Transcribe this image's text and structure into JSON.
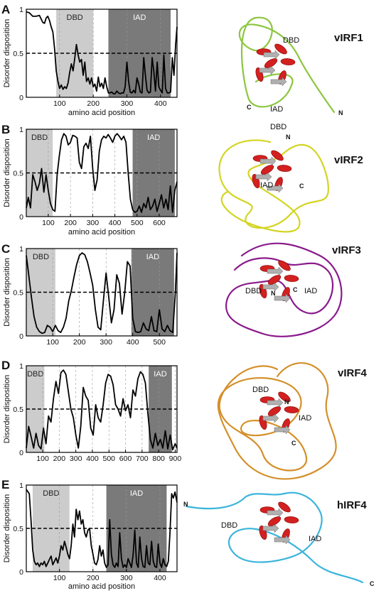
{
  "chart_data": [
    {
      "type": "line",
      "panel": "A",
      "protein": "vIRF1",
      "xlabel": "amino acid position",
      "ylabel": "Disorder disposition",
      "xlim": [
        1,
        449
      ],
      "ylim": [
        0,
        1
      ],
      "x_ticks": [
        100,
        200,
        300,
        400
      ],
      "y_ticks": [
        {
          "v": 0,
          "t": "0"
        },
        {
          "v": 0.5,
          "t": "0.5"
        },
        {
          "v": 1,
          "t": "1"
        }
      ],
      "threshold": 0.5,
      "regions": [
        {
          "label": "DBD",
          "start": 90,
          "end": 200,
          "shade": "light"
        },
        {
          "label": "IAD",
          "start": 245,
          "end": 430,
          "shade": "dark"
        }
      ],
      "x": [
        1,
        10,
        20,
        30,
        40,
        50,
        55,
        60,
        65,
        70,
        75,
        80,
        85,
        90,
        95,
        100,
        105,
        110,
        115,
        120,
        125,
        130,
        135,
        140,
        145,
        150,
        155,
        160,
        165,
        170,
        175,
        180,
        185,
        190,
        195,
        200,
        205,
        210,
        215,
        220,
        225,
        230,
        235,
        240,
        245,
        250,
        255,
        260,
        265,
        270,
        275,
        280,
        285,
        290,
        295,
        300,
        305,
        310,
        315,
        320,
        325,
        330,
        335,
        340,
        345,
        350,
        355,
        360,
        365,
        370,
        375,
        380,
        385,
        390,
        395,
        400,
        405,
        410,
        415,
        420,
        425,
        430,
        435,
        440,
        445,
        449
      ],
      "values": [
        0.97,
        0.96,
        0.92,
        0.92,
        0.93,
        0.85,
        0.84,
        0.9,
        0.92,
        0.87,
        0.8,
        0.74,
        0.55,
        0.3,
        0.18,
        0.1,
        0.14,
        0.09,
        0.12,
        0.1,
        0.16,
        0.28,
        0.38,
        0.3,
        0.44,
        0.6,
        0.48,
        0.4,
        0.43,
        0.25,
        0.4,
        0.18,
        0.22,
        0.15,
        0.22,
        0.12,
        0.15,
        0.07,
        0.23,
        0.12,
        0.16,
        0.1,
        0.22,
        0.12,
        0.05,
        0.05,
        0.06,
        0.04,
        0.04,
        0.07,
        0.05,
        0.04,
        0.05,
        0.05,
        0.12,
        0.4,
        0.18,
        0.06,
        0.05,
        0.08,
        0.05,
        0.22,
        0.15,
        0.06,
        0.05,
        0.45,
        0.25,
        0.08,
        0.05,
        0.06,
        0.45,
        0.3,
        0.07,
        0.4,
        0.12,
        0.08,
        0.05,
        0.48,
        0.1,
        0.05,
        0.05,
        0.06,
        0.45,
        0.25,
        0.6,
        0.8
      ]
    },
    {
      "type": "line",
      "panel": "B",
      "protein": "vIRF2",
      "xlabel": "amino acid position",
      "ylabel": "Disorder disposition",
      "xlim": [
        1,
        680
      ],
      "ylim": [
        0,
        1
      ],
      "x_ticks": [
        100,
        200,
        300,
        400,
        500,
        600
      ],
      "y_ticks": [
        {
          "v": 0,
          "t": "0"
        },
        {
          "v": 0.5,
          "t": "0.5"
        },
        {
          "v": 1,
          "t": "1"
        }
      ],
      "threshold": 0.5,
      "regions": [
        {
          "label": "DBD",
          "start": 1,
          "end": 120,
          "shade": "light"
        },
        {
          "label": "IAD",
          "start": 480,
          "end": 670,
          "shade": "dark"
        }
      ],
      "x": [
        1,
        10,
        20,
        30,
        40,
        50,
        60,
        70,
        80,
        90,
        100,
        110,
        120,
        130,
        140,
        150,
        160,
        170,
        180,
        190,
        200,
        210,
        220,
        230,
        240,
        250,
        260,
        270,
        280,
        290,
        300,
        310,
        320,
        330,
        340,
        350,
        360,
        370,
        380,
        390,
        400,
        410,
        420,
        430,
        440,
        450,
        460,
        470,
        480,
        490,
        500,
        510,
        520,
        530,
        540,
        550,
        560,
        570,
        580,
        590,
        600,
        610,
        620,
        630,
        640,
        650,
        660,
        670,
        680
      ],
      "values": [
        0.1,
        0.22,
        0.1,
        0.48,
        0.4,
        0.3,
        0.38,
        0.55,
        0.28,
        0.48,
        0.3,
        0.15,
        0.08,
        0.06,
        0.48,
        0.7,
        0.88,
        0.95,
        0.92,
        0.82,
        0.85,
        0.93,
        0.92,
        0.9,
        0.62,
        0.55,
        0.8,
        0.84,
        0.78,
        0.92,
        0.55,
        0.3,
        0.42,
        0.75,
        0.88,
        0.92,
        0.9,
        0.94,
        0.9,
        0.85,
        0.92,
        0.95,
        0.92,
        0.88,
        0.92,
        0.85,
        0.5,
        0.2,
        0.08,
        0.05,
        0.06,
        0.12,
        0.05,
        0.15,
        0.1,
        0.22,
        0.08,
        0.12,
        0.2,
        0.06,
        0.15,
        0.25,
        0.1,
        0.2,
        0.08,
        0.35,
        0.05,
        0.3,
        0.4
      ]
    },
    {
      "type": "line",
      "panel": "C",
      "protein": "vIRF3",
      "xlabel": "",
      "ylabel": "Disorder disposition",
      "xlim": [
        1,
        566
      ],
      "ylim": [
        0,
        1
      ],
      "x_ticks": [
        100,
        200,
        300,
        400,
        500
      ],
      "y_ticks": [
        {
          "v": 0,
          "t": "0"
        },
        {
          "v": 0.5,
          "t": "0.5"
        },
        {
          "v": 1,
          "t": "1"
        }
      ],
      "threshold": 0.5,
      "regions": [
        {
          "label": "DBD",
          "start": 1,
          "end": 110,
          "shade": "light"
        },
        {
          "label": "IAD",
          "start": 395,
          "end": 555,
          "shade": "dark"
        }
      ],
      "x": [
        1,
        10,
        20,
        30,
        40,
        50,
        60,
        70,
        80,
        90,
        100,
        110,
        120,
        130,
        140,
        150,
        160,
        170,
        180,
        190,
        200,
        210,
        220,
        230,
        240,
        250,
        260,
        270,
        280,
        290,
        300,
        310,
        320,
        330,
        340,
        350,
        360,
        370,
        380,
        390,
        400,
        410,
        420,
        430,
        440,
        450,
        460,
        470,
        480,
        490,
        500,
        510,
        520,
        530,
        540,
        550,
        560,
        566
      ],
      "values": [
        0.92,
        0.7,
        0.45,
        0.22,
        0.1,
        0.05,
        0.03,
        0.04,
        0.12,
        0.1,
        0.05,
        0.12,
        0.06,
        0.04,
        0.1,
        0.2,
        0.4,
        0.52,
        0.68,
        0.82,
        0.92,
        0.95,
        0.93,
        0.85,
        0.72,
        0.58,
        0.3,
        0.1,
        0.07,
        0.4,
        0.72,
        0.45,
        0.15,
        0.3,
        0.7,
        0.6,
        0.25,
        0.5,
        0.85,
        0.8,
        0.2,
        0.05,
        0.04,
        0.05,
        0.15,
        0.08,
        0.06,
        0.22,
        0.06,
        0.05,
        0.3,
        0.08,
        0.05,
        0.12,
        0.06,
        0.04,
        0.5,
        0.95
      ]
    },
    {
      "type": "line",
      "panel": "D",
      "protein": "vIRF4",
      "xlabel": "",
      "ylabel": "Disorder disposition",
      "xlim": [
        1,
        911
      ],
      "ylim": [
        0,
        1
      ],
      "x_ticks": [
        100,
        200,
        300,
        400,
        500,
        600,
        700,
        800,
        900
      ],
      "y_ticks": [
        {
          "v": 0,
          "t": "0"
        },
        {
          "v": 0.5,
          "t": "0.5"
        },
        {
          "v": 1,
          "t": "1"
        }
      ],
      "threshold": 0.5,
      "regions": [
        {
          "label": "DBD",
          "start": 1,
          "end": 110,
          "shade": "light"
        },
        {
          "label": "IAD",
          "start": 740,
          "end": 880,
          "shade": "dark"
        }
      ],
      "x": [
        1,
        15,
        30,
        45,
        60,
        75,
        90,
        105,
        120,
        135,
        150,
        165,
        180,
        195,
        210,
        225,
        240,
        255,
        270,
        285,
        300,
        315,
        330,
        345,
        360,
        375,
        390,
        405,
        420,
        435,
        450,
        465,
        480,
        495,
        510,
        525,
        540,
        555,
        570,
        585,
        600,
        615,
        630,
        645,
        660,
        675,
        690,
        705,
        720,
        735,
        750,
        765,
        780,
        795,
        810,
        825,
        840,
        855,
        870,
        885,
        900,
        911
      ],
      "values": [
        0.05,
        0.3,
        0.18,
        0.05,
        0.22,
        0.08,
        0.04,
        0.28,
        0.1,
        0.42,
        0.35,
        0.62,
        0.82,
        0.68,
        0.92,
        0.95,
        0.9,
        0.7,
        0.5,
        0.4,
        0.2,
        0.05,
        0.3,
        0.75,
        0.65,
        0.6,
        0.28,
        0.2,
        0.55,
        0.4,
        0.35,
        0.55,
        0.8,
        0.9,
        0.88,
        0.78,
        0.55,
        0.5,
        0.42,
        0.62,
        0.48,
        0.55,
        0.4,
        0.72,
        0.65,
        0.85,
        0.93,
        0.9,
        0.8,
        0.45,
        0.15,
        0.05,
        0.22,
        0.08,
        0.15,
        0.05,
        0.25,
        0.04,
        0.2,
        0.03,
        0.1,
        0.05
      ]
    },
    {
      "type": "line",
      "panel": "E",
      "protein": "hIRF4",
      "xlabel": "amino acid position",
      "ylabel": "Disorder disposition",
      "xlim": [
        1,
        451
      ],
      "ylim": [
        0,
        1
      ],
      "x_ticks": [
        100,
        200,
        300,
        400
      ],
      "y_ticks": [
        {
          "v": 0,
          "t": "0"
        },
        {
          "v": 0.5,
          "t": "0.5"
        },
        {
          "v": 1,
          "t": "1"
        }
      ],
      "threshold": 0.5,
      "regions": [
        {
          "label": "DBD",
          "start": 20,
          "end": 130,
          "shade": "light"
        },
        {
          "label": "IAD",
          "start": 240,
          "end": 420,
          "shade": "dark"
        }
      ],
      "x": [
        1,
        10,
        15,
        20,
        25,
        30,
        35,
        40,
        45,
        50,
        55,
        60,
        65,
        70,
        75,
        80,
        85,
        90,
        95,
        100,
        105,
        110,
        115,
        120,
        125,
        130,
        135,
        140,
        145,
        150,
        155,
        160,
        165,
        170,
        175,
        180,
        185,
        190,
        195,
        200,
        205,
        210,
        215,
        220,
        225,
        230,
        235,
        240,
        245,
        250,
        255,
        260,
        265,
        270,
        275,
        280,
        285,
        290,
        295,
        300,
        305,
        310,
        315,
        320,
        325,
        330,
        335,
        340,
        345,
        350,
        355,
        360,
        365,
        370,
        375,
        380,
        385,
        390,
        395,
        400,
        405,
        410,
        415,
        420,
        425,
        430,
        435,
        440,
        445,
        451
      ],
      "values": [
        0.95,
        0.9,
        0.6,
        0.25,
        0.12,
        0.08,
        0.1,
        0.06,
        0.1,
        0.08,
        0.12,
        0.06,
        0.1,
        0.14,
        0.18,
        0.08,
        0.12,
        0.16,
        0.1,
        0.18,
        0.3,
        0.25,
        0.35,
        0.28,
        0.2,
        0.15,
        0.3,
        0.55,
        0.4,
        0.72,
        0.6,
        0.7,
        0.55,
        0.6,
        0.45,
        0.4,
        0.48,
        0.5,
        0.3,
        0.2,
        0.1,
        0.08,
        0.14,
        0.3,
        0.18,
        0.25,
        0.1,
        0.05,
        0.08,
        0.6,
        0.2,
        0.08,
        0.05,
        0.1,
        0.06,
        0.45,
        0.15,
        0.05,
        0.08,
        0.05,
        0.15,
        0.1,
        0.05,
        0.2,
        0.48,
        0.1,
        0.05,
        0.4,
        0.15,
        0.06,
        0.05,
        0.3,
        0.1,
        0.08,
        0.35,
        0.12,
        0.06,
        0.05,
        0.32,
        0.1,
        0.05,
        0.15,
        0.08,
        0.06,
        0.12,
        0.45,
        0.9,
        0.85,
        0.92,
        0.8
      ]
    }
  ],
  "structures": [
    {
      "protein": "vIRF1",
      "labels": [
        "DBD",
        "IAD"
      ],
      "termini": [
        "N",
        "C"
      ],
      "coil_color": "#8cc63f"
    },
    {
      "protein": "vIRF2",
      "labels": [
        "DBD",
        "IAD"
      ],
      "termini": [
        "N",
        "C"
      ],
      "coil_color": "#d4d422"
    },
    {
      "protein": "vIRF3",
      "labels": [
        "DBD",
        "IAD"
      ],
      "termini": [
        "N",
        "C"
      ],
      "coil_color": "#8a1a8c"
    },
    {
      "protein": "vIRF4",
      "labels": [
        "DBD",
        "IAD"
      ],
      "termini": [
        "N",
        "C"
      ],
      "coil_color": "#d4902a"
    },
    {
      "protein": "hIRF4",
      "labels": [
        "DBD",
        "IAD"
      ],
      "termini": [
        "N",
        "C"
      ],
      "coil_color": "#3cb4dc"
    }
  ],
  "colors": {
    "dbd_shade": "#cccccc",
    "iad_shade": "#7a7a7a",
    "line": "#000000",
    "helix": "#d32020",
    "sheet": "#b0b0b0"
  }
}
